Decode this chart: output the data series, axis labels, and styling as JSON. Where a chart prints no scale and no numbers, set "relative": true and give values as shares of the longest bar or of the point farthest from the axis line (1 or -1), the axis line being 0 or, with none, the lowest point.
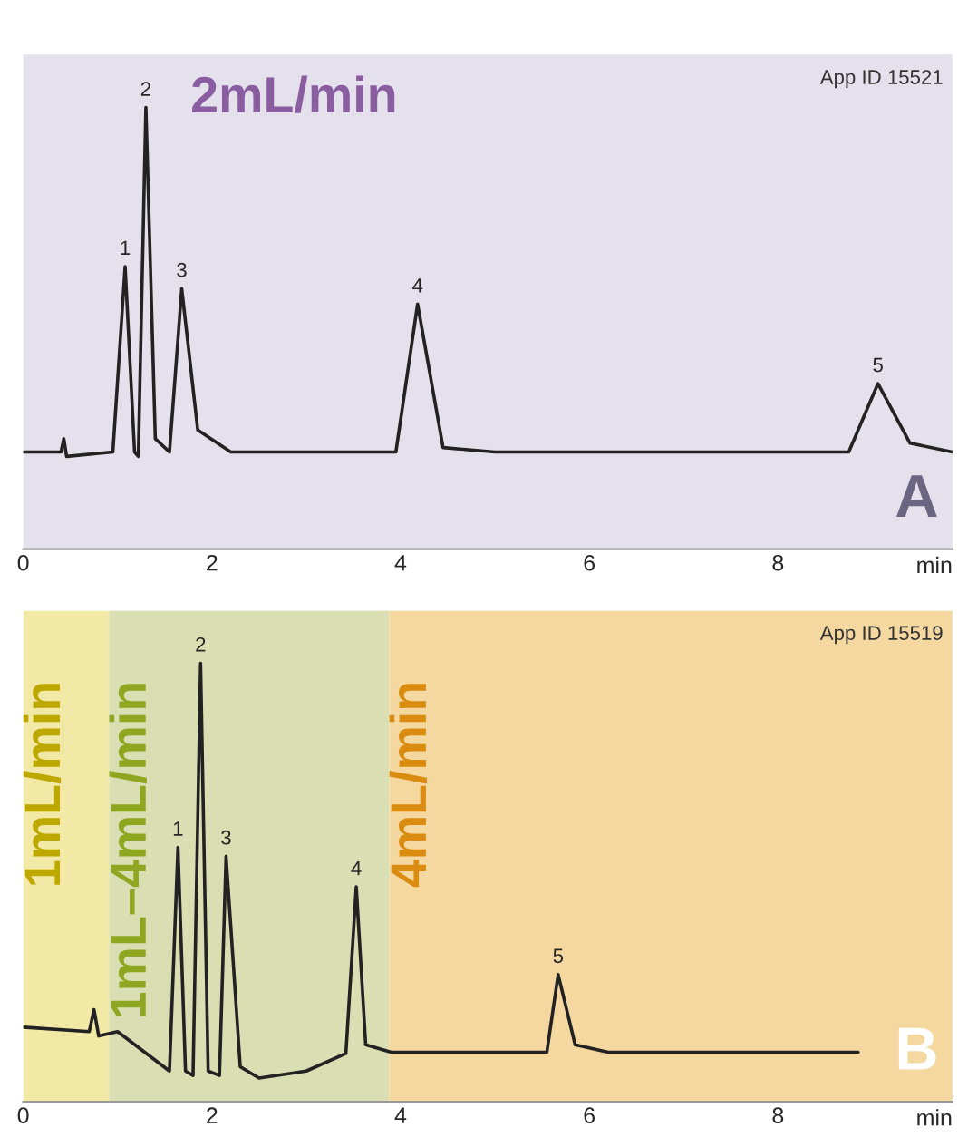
{
  "chart_data": [
    {
      "type": "line",
      "relative": true,
      "xlabel": "min",
      "xlim": [
        0,
        9.85
      ],
      "xticks": [
        0,
        2,
        4,
        6,
        8
      ],
      "grid": false,
      "legend": false,
      "tick_labels": "x",
      "series": [
        {
          "color": "#222222",
          "x": [
            0,
            0.4,
            0.43,
            0.46,
            0.95,
            1.08,
            1.18,
            1.22,
            1.3,
            1.4,
            1.55,
            1.68,
            1.85,
            2.2,
            3.95,
            4.18,
            4.45,
            5,
            8.75,
            9.06,
            9.4,
            9.85
          ],
          "values": [
            0.22,
            0.22,
            0.25,
            0.21,
            0.22,
            0.64,
            0.22,
            0.21,
            1,
            0.25,
            0.22,
            0.59,
            0.27,
            0.22,
            0.22,
            0.555,
            0.23,
            0.22,
            0.22,
            0.375,
            0.24,
            0.22
          ]
        }
      ],
      "annotations": [
        "App ID 15521",
        "A",
        "2mL/min",
        {
          "text": "1",
          "x": 1.08,
          "y": 0.64
        },
        {
          "text": "2",
          "x": 1.3,
          "y": 1
        },
        {
          "text": "3",
          "x": 1.68,
          "y": 0.59
        },
        {
          "text": "4",
          "x": 4.18,
          "y": 0.555
        },
        {
          "text": "5",
          "x": 9.06,
          "y": 0.375
        }
      ]
    },
    {
      "type": "line",
      "relative": true,
      "xlabel": "min",
      "xlim": [
        0,
        9.85
      ],
      "xticks": [
        0,
        2,
        4,
        6,
        8
      ],
      "grid": false,
      "legend": false,
      "tick_labels": "x",
      "series": [
        {
          "color": "#222222",
          "x": [
            0,
            0.7,
            0.75,
            0.8,
            1.0,
            1.55,
            1.64,
            1.72,
            1.8,
            1.88,
            1.96,
            2.08,
            2.15,
            2.3,
            2.5,
            3.0,
            3.42,
            3.53,
            3.63,
            3.9,
            5.55,
            5.67,
            5.85,
            6.2,
            8.85
          ],
          "values": [
            0.17,
            0.16,
            0.21,
            0.15,
            0.16,
            0.07,
            0.58,
            0.07,
            0.06,
            1,
            0.07,
            0.06,
            0.56,
            0.08,
            0.054,
            0.07,
            0.11,
            0.49,
            0.13,
            0.113,
            0.113,
            0.29,
            0.13,
            0.113,
            0.113
          ]
        }
      ],
      "bands": [
        {
          "axis": "x",
          "from": 0,
          "to": 0.91,
          "label": "1mL/min",
          "color": "#f2e9a6"
        },
        {
          "axis": "x",
          "from": 0.91,
          "to": 3.88,
          "label": "1mL–4mL/min",
          "color": "#d9dfb2"
        },
        {
          "axis": "x",
          "from": 3.88,
          "to": 9.85,
          "label": "4mL/min",
          "color": "#f5d7a0"
        }
      ],
      "annotations": [
        "App ID 15519",
        "B",
        {
          "text": "1",
          "x": 1.64,
          "y": 0.58
        },
        {
          "text": "2",
          "x": 1.88,
          "y": 1
        },
        {
          "text": "3",
          "x": 2.15,
          "y": 0.56
        },
        {
          "text": "4",
          "x": 3.53,
          "y": 0.49
        },
        {
          "text": "5",
          "x": 5.67,
          "y": 0.29
        }
      ]
    }
  ]
}
